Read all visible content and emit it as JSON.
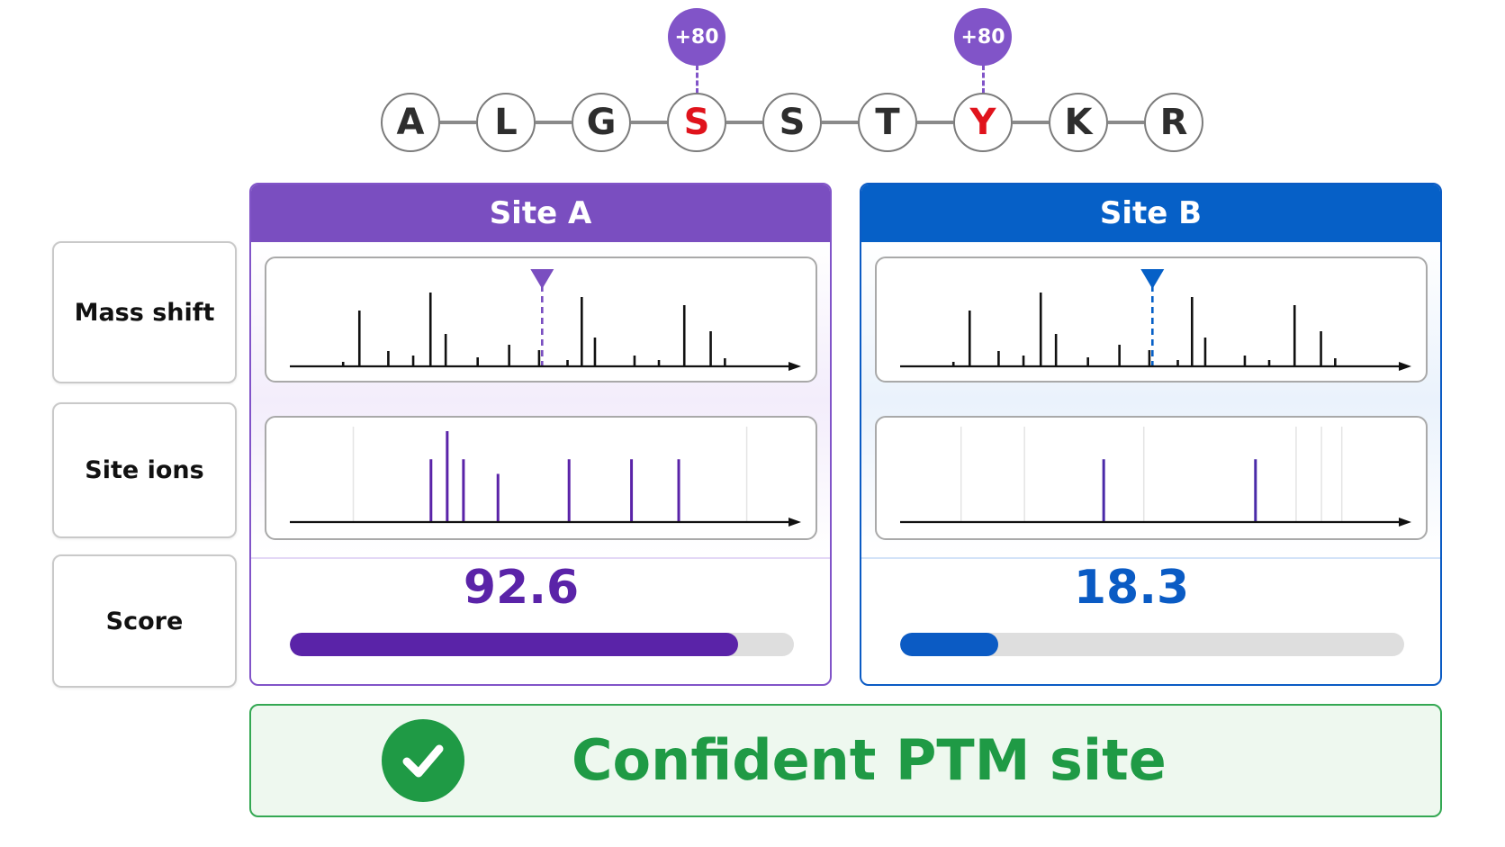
{
  "peptide": {
    "residues": [
      {
        "letter": "A",
        "modified": false
      },
      {
        "letter": "L",
        "modified": false
      },
      {
        "letter": "G",
        "modified": false
      },
      {
        "letter": "S",
        "modified": true,
        "mod_label": "+80"
      },
      {
        "letter": "S",
        "modified": false
      },
      {
        "letter": "T",
        "modified": false
      },
      {
        "letter": "Y",
        "modified": true,
        "mod_label": "+80"
      },
      {
        "letter": "K",
        "modified": false
      },
      {
        "letter": "R",
        "modified": false
      }
    ]
  },
  "row_labels": {
    "mass_shift": "Mass shift",
    "site_ions": "Site ions",
    "score": "Score"
  },
  "sites": [
    {
      "id": "a",
      "title": "Site A",
      "accent": "#7a4ec0",
      "score_text": "92.6",
      "score_value": 92.6,
      "score_fraction": 0.89,
      "mass_shift_marker": 0.497,
      "mass_shift_peaks": [
        [
          0.105,
          0.05
        ],
        [
          0.137,
          0.62
        ],
        [
          0.194,
          0.17
        ],
        [
          0.243,
          0.12
        ],
        [
          0.277,
          0.82
        ],
        [
          0.307,
          0.36
        ],
        [
          0.37,
          0.1
        ],
        [
          0.432,
          0.24
        ],
        [
          0.491,
          0.18
        ],
        [
          0.547,
          0.07
        ],
        [
          0.575,
          0.77
        ],
        [
          0.601,
          0.32
        ],
        [
          0.679,
          0.12
        ],
        [
          0.727,
          0.07
        ],
        [
          0.777,
          0.68
        ],
        [
          0.829,
          0.39
        ],
        [
          0.857,
          0.09
        ]
      ],
      "site_ion_peaks": [
        [
          0.278,
          0.69
        ],
        [
          0.31,
          1.0
        ],
        [
          0.342,
          0.69
        ],
        [
          0.41,
          0.53
        ],
        [
          0.55,
          0.69
        ],
        [
          0.673,
          0.69
        ],
        [
          0.766,
          0.69
        ]
      ],
      "faint_lines": [
        0.125,
        0.9
      ]
    },
    {
      "id": "b",
      "title": "Site B",
      "accent": "#0660c7",
      "score_text": "18.3",
      "score_value": 18.3,
      "score_fraction": 0.195,
      "mass_shift_marker": 0.497,
      "mass_shift_peaks": [
        [
          0.105,
          0.05
        ],
        [
          0.137,
          0.62
        ],
        [
          0.194,
          0.17
        ],
        [
          0.243,
          0.12
        ],
        [
          0.277,
          0.82
        ],
        [
          0.307,
          0.36
        ],
        [
          0.37,
          0.1
        ],
        [
          0.432,
          0.24
        ],
        [
          0.491,
          0.18
        ],
        [
          0.547,
          0.07
        ],
        [
          0.575,
          0.77
        ],
        [
          0.601,
          0.32
        ],
        [
          0.679,
          0.12
        ],
        [
          0.727,
          0.07
        ],
        [
          0.777,
          0.68
        ],
        [
          0.829,
          0.39
        ],
        [
          0.857,
          0.09
        ]
      ],
      "site_ion_peaks": [
        [
          0.401,
          0.69
        ],
        [
          0.7,
          0.69
        ]
      ],
      "faint_lines": [
        0.12,
        0.245,
        0.48,
        0.78,
        0.83,
        0.87
      ]
    }
  ],
  "verdict": {
    "text": "Confident PTM site",
    "color": "#1f9a45",
    "icon": "checkmark-icon"
  }
}
